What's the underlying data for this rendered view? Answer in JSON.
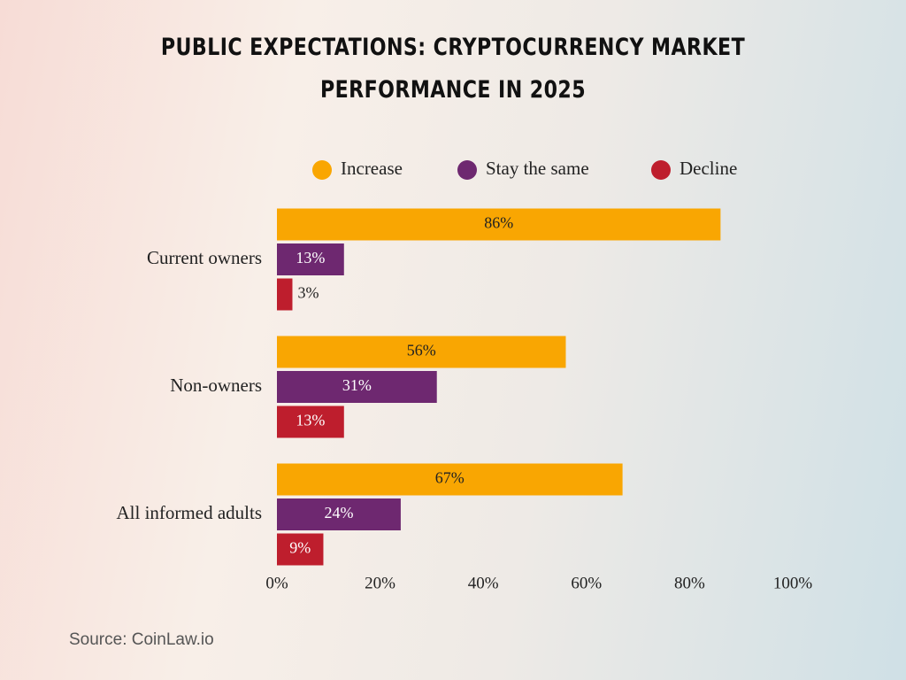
{
  "chart_data": {
    "type": "hbar",
    "title": "Public Expectations: Cryptocurrency Market Performance in 2025",
    "source": "Source: CoinLaw.io",
    "categories": [
      "Current owners",
      "Non-owners",
      "All informed adults"
    ],
    "series": [
      {
        "name": "Increase",
        "color": "#f9a602",
        "values": [
          86,
          56,
          67
        ],
        "value_labels": [
          "86%",
          "56%",
          "67%"
        ]
      },
      {
        "name": "Stay the same",
        "color": "#6e2870",
        "values": [
          13,
          31,
          24
        ],
        "value_labels": [
          "13%",
          "31%",
          "24%"
        ]
      },
      {
        "name": "Decline",
        "color": "#be1e2d",
        "values": [
          3,
          13,
          9
        ],
        "value_labels": [
          "3%",
          "13%",
          "9%"
        ]
      }
    ],
    "xlim": [
      0,
      100
    ],
    "xticks": [
      {
        "value": 0,
        "label": "0%"
      },
      {
        "value": 20,
        "label": "20%"
      },
      {
        "value": 40,
        "label": "40%"
      },
      {
        "value": 60,
        "label": "60%"
      },
      {
        "value": 80,
        "label": "80%"
      },
      {
        "value": 100,
        "label": "100%"
      }
    ],
    "legend": "top"
  }
}
